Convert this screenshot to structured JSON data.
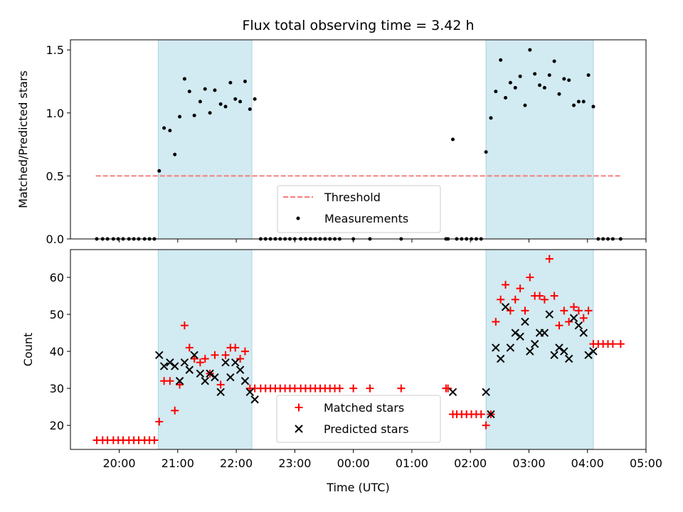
{
  "chart_data": [
    {
      "type": "scatter",
      "title": "Flux total observing time = 3.42 h",
      "xlabel": "",
      "ylabel": "Matched/Predicted stars",
      "xlim": [
        "19:10",
        "05:00"
      ],
      "ylim": [
        0,
        1.58
      ],
      "yticks": [
        0.0,
        0.5,
        1.0,
        1.5
      ],
      "yticklabels": [
        "0.0",
        "0.5",
        "1.0",
        "1.5"
      ],
      "shaded_intervals": [
        [
          "20:40",
          "22:16"
        ],
        [
          "02:16",
          "04:06"
        ]
      ],
      "shade_color": "#d2eaf1",
      "threshold": {
        "label": "Threshold",
        "value": 0.5,
        "x_start": "19:36",
        "x_end": "04:34",
        "color": "#f47d7b"
      },
      "legend": {
        "position": "bottom-center",
        "entries": [
          "Threshold",
          "Measurements"
        ]
      },
      "series": [
        {
          "name": "Measurements",
          "marker": "dot",
          "color": "#000000",
          "points": [
            [
              "19:37",
              0
            ],
            [
              "19:43",
              0
            ],
            [
              "19:48",
              0
            ],
            [
              "19:54",
              0
            ],
            [
              "19:59",
              0
            ],
            [
              "20:04",
              0
            ],
            [
              "20:10",
              0
            ],
            [
              "20:15",
              0
            ],
            [
              "20:20",
              0
            ],
            [
              "20:26",
              0
            ],
            [
              "20:31",
              0
            ],
            [
              "20:36",
              0
            ],
            [
              "20:41",
              0.54
            ],
            [
              "20:46",
              0.88
            ],
            [
              "20:52",
              0.86
            ],
            [
              "20:57",
              0.67
            ],
            [
              "21:02",
              0.97
            ],
            [
              "21:07",
              1.27
            ],
            [
              "21:12",
              1.17
            ],
            [
              "21:17",
              0.98
            ],
            [
              "21:23",
              1.09
            ],
            [
              "21:28",
              1.19
            ],
            [
              "21:33",
              1.0
            ],
            [
              "21:38",
              1.18
            ],
            [
              "21:44",
              1.07
            ],
            [
              "21:49",
              1.05
            ],
            [
              "21:54",
              1.24
            ],
            [
              "21:59",
              1.11
            ],
            [
              "22:04",
              1.09
            ],
            [
              "22:09",
              1.25
            ],
            [
              "22:14",
              1.03
            ],
            [
              "22:19",
              1.11
            ],
            [
              "22:25",
              0
            ],
            [
              "22:30",
              0
            ],
            [
              "22:35",
              0
            ],
            [
              "22:40",
              0
            ],
            [
              "22:45",
              0
            ],
            [
              "22:50",
              0
            ],
            [
              "22:55",
              0
            ],
            [
              "23:00",
              0
            ],
            [
              "23:06",
              0
            ],
            [
              "23:11",
              0
            ],
            [
              "23:16",
              0
            ],
            [
              "23:21",
              0
            ],
            [
              "23:26",
              0
            ],
            [
              "23:31",
              0
            ],
            [
              "23:36",
              0
            ],
            [
              "23:41",
              0
            ],
            [
              "23:46",
              0
            ],
            [
              "00:00",
              0
            ],
            [
              "00:17",
              0
            ],
            [
              "00:49",
              0
            ],
            [
              "01:35",
              0
            ],
            [
              "01:37",
              0
            ],
            [
              "01:42",
              0.79
            ],
            [
              "01:46",
              0
            ],
            [
              "01:51",
              0
            ],
            [
              "01:56",
              0
            ],
            [
              "02:01",
              0
            ],
            [
              "02:06",
              0
            ],
            [
              "02:11",
              0
            ],
            [
              "02:16",
              0.69
            ],
            [
              "02:21",
              0.96
            ],
            [
              "02:26",
              1.17
            ],
            [
              "02:31",
              1.42
            ],
            [
              "02:36",
              1.12
            ],
            [
              "02:41",
              1.24
            ],
            [
              "02:46",
              1.2
            ],
            [
              "02:51",
              1.29
            ],
            [
              "02:56",
              1.06
            ],
            [
              "03:01",
              1.5
            ],
            [
              "03:06",
              1.31
            ],
            [
              "03:11",
              1.22
            ],
            [
              "03:16",
              1.2
            ],
            [
              "03:21",
              1.3
            ],
            [
              "03:26",
              1.41
            ],
            [
              "03:31",
              1.15
            ],
            [
              "03:36",
              1.27
            ],
            [
              "03:41",
              1.26
            ],
            [
              "03:46",
              1.06
            ],
            [
              "03:51",
              1.09
            ],
            [
              "03:56",
              1.09
            ],
            [
              "04:01",
              1.3
            ],
            [
              "04:06",
              1.05
            ],
            [
              "04:11",
              0
            ],
            [
              "04:16",
              0
            ],
            [
              "04:21",
              0
            ],
            [
              "04:26",
              0
            ],
            [
              "04:34",
              0
            ]
          ]
        }
      ]
    },
    {
      "type": "scatter",
      "title": "",
      "xlabel": "Time (UTC)",
      "ylabel": "Count",
      "xlim": [
        "19:10",
        "05:00"
      ],
      "ylim": [
        13.5,
        67.5
      ],
      "yticks": [
        20,
        30,
        40,
        50,
        60
      ],
      "yticklabels": [
        "20",
        "30",
        "40",
        "50",
        "60"
      ],
      "xticks": [
        "20:00",
        "21:00",
        "22:00",
        "23:00",
        "00:00",
        "01:00",
        "02:00",
        "03:00",
        "04:00",
        "05:00"
      ],
      "shaded_intervals": [
        [
          "20:40",
          "22:16"
        ],
        [
          "02:16",
          "04:06"
        ]
      ],
      "shade_color": "#d2eaf1",
      "legend": {
        "position": "bottom-center",
        "entries": [
          "Matched stars",
          "Predicted stars"
        ]
      },
      "series": [
        {
          "name": "Matched stars",
          "marker": "plus",
          "color": "#ff0000",
          "points": [
            [
              "19:37",
              16
            ],
            [
              "19:43",
              16
            ],
            [
              "19:48",
              16
            ],
            [
              "19:54",
              16
            ],
            [
              "19:59",
              16
            ],
            [
              "20:04",
              16
            ],
            [
              "20:10",
              16
            ],
            [
              "20:15",
              16
            ],
            [
              "20:20",
              16
            ],
            [
              "20:26",
              16
            ],
            [
              "20:31",
              16
            ],
            [
              "20:36",
              16
            ],
            [
              "20:41",
              21
            ],
            [
              "20:46",
              32
            ],
            [
              "20:52",
              32
            ],
            [
              "20:57",
              24
            ],
            [
              "21:02",
              31
            ],
            [
              "21:07",
              47
            ],
            [
              "21:12",
              41
            ],
            [
              "21:17",
              38
            ],
            [
              "21:23",
              37
            ],
            [
              "21:28",
              38
            ],
            [
              "21:33",
              34
            ],
            [
              "21:38",
              39
            ],
            [
              "21:44",
              31
            ],
            [
              "21:49",
              39
            ],
            [
              "21:54",
              41
            ],
            [
              "21:59",
              41
            ],
            [
              "22:04",
              38
            ],
            [
              "22:09",
              40
            ],
            [
              "22:14",
              30
            ],
            [
              "22:19",
              30
            ],
            [
              "22:25",
              30
            ],
            [
              "22:30",
              30
            ],
            [
              "22:35",
              30
            ],
            [
              "22:40",
              30
            ],
            [
              "22:45",
              30
            ],
            [
              "22:50",
              30
            ],
            [
              "22:55",
              30
            ],
            [
              "23:00",
              30
            ],
            [
              "23:06",
              30
            ],
            [
              "23:11",
              30
            ],
            [
              "23:16",
              30
            ],
            [
              "23:21",
              30
            ],
            [
              "23:26",
              30
            ],
            [
              "23:31",
              30
            ],
            [
              "23:36",
              30
            ],
            [
              "23:41",
              30
            ],
            [
              "23:46",
              30
            ],
            [
              "00:00",
              30
            ],
            [
              "00:17",
              30
            ],
            [
              "00:49",
              30
            ],
            [
              "01:35",
              30
            ],
            [
              "01:37",
              30
            ],
            [
              "01:42",
              23
            ],
            [
              "01:46",
              23
            ],
            [
              "01:51",
              23
            ],
            [
              "01:56",
              23
            ],
            [
              "02:01",
              23
            ],
            [
              "02:06",
              23
            ],
            [
              "02:11",
              23
            ],
            [
              "02:16",
              20
            ],
            [
              "02:21",
              23
            ],
            [
              "02:26",
              48
            ],
            [
              "02:31",
              54
            ],
            [
              "02:36",
              58
            ],
            [
              "02:41",
              51
            ],
            [
              "02:46",
              54
            ],
            [
              "02:51",
              57
            ],
            [
              "02:56",
              51
            ],
            [
              "03:01",
              60
            ],
            [
              "03:06",
              55
            ],
            [
              "03:11",
              55
            ],
            [
              "03:16",
              54
            ],
            [
              "03:21",
              65
            ],
            [
              "03:26",
              55
            ],
            [
              "03:31",
              47
            ],
            [
              "03:36",
              51
            ],
            [
              "03:41",
              48
            ],
            [
              "03:46",
              52
            ],
            [
              "03:51",
              51
            ],
            [
              "03:56",
              49
            ],
            [
              "04:01",
              51
            ],
            [
              "04:06",
              42
            ],
            [
              "04:11",
              42
            ],
            [
              "04:16",
              42
            ],
            [
              "04:21",
              42
            ],
            [
              "04:26",
              42
            ],
            [
              "04:34",
              42
            ]
          ]
        },
        {
          "name": "Predicted stars",
          "marker": "x",
          "color": "#000000",
          "points": [
            [
              "20:41",
              39
            ],
            [
              "20:46",
              36
            ],
            [
              "20:52",
              37
            ],
            [
              "20:57",
              36
            ],
            [
              "21:02",
              32
            ],
            [
              "21:07",
              37
            ],
            [
              "21:12",
              35
            ],
            [
              "21:17",
              39
            ],
            [
              "21:23",
              34
            ],
            [
              "21:28",
              32
            ],
            [
              "21:33",
              34
            ],
            [
              "21:38",
              33
            ],
            [
              "21:44",
              29
            ],
            [
              "21:49",
              37
            ],
            [
              "21:54",
              33
            ],
            [
              "21:59",
              37
            ],
            [
              "22:04",
              35
            ],
            [
              "22:09",
              32
            ],
            [
              "22:14",
              29
            ],
            [
              "22:19",
              27
            ],
            [
              "01:42",
              29
            ],
            [
              "02:16",
              29
            ],
            [
              "02:21",
              23
            ],
            [
              "02:26",
              41
            ],
            [
              "02:31",
              38
            ],
            [
              "02:36",
              52
            ],
            [
              "02:41",
              41
            ],
            [
              "02:46",
              45
            ],
            [
              "02:51",
              44
            ],
            [
              "02:56",
              48
            ],
            [
              "03:01",
              40
            ],
            [
              "03:06",
              42
            ],
            [
              "03:11",
              45
            ],
            [
              "03:16",
              45
            ],
            [
              "03:21",
              50
            ],
            [
              "03:26",
              39
            ],
            [
              "03:31",
              41
            ],
            [
              "03:36",
              40
            ],
            [
              "03:41",
              38
            ],
            [
              "03:46",
              49
            ],
            [
              "03:51",
              47
            ],
            [
              "03:56",
              45
            ],
            [
              "04:01",
              39
            ],
            [
              "04:06",
              40
            ]
          ]
        }
      ]
    }
  ]
}
